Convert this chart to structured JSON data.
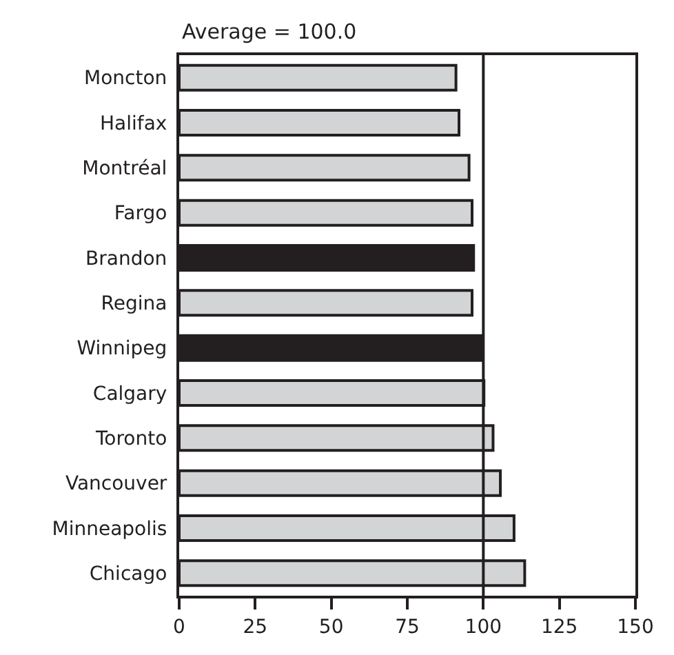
{
  "chart_data": {
    "type": "bar",
    "orientation": "horizontal",
    "categories": [
      "Moncton",
      "Halifax",
      "Montréal",
      "Fargo",
      "Brandon",
      "Regina",
      "Winnipeg",
      "Calgary",
      "Toronto",
      "Vancouver",
      "Minneapolis",
      "Chicago"
    ],
    "values": [
      91,
      92,
      95.3,
      96.3,
      96.8,
      96.3,
      99.8,
      100.2,
      103.2,
      105.6,
      110.1,
      113.6
    ],
    "colors": [
      "#d3d4d6",
      "#d3d4d6",
      "#d3d4d6",
      "#d3d4d6",
      "#231f20",
      "#d3d4d6",
      "#231f20",
      "#d3d4d6",
      "#d3d4d6",
      "#d3d4d6",
      "#d3d4d6",
      "#d3d4d6"
    ],
    "xlim": [
      0,
      150
    ],
    "xticks": [
      0,
      25,
      50,
      75,
      100,
      125,
      150
    ],
    "ref_lines": [
      {
        "axis": "x",
        "value": 100,
        "label": "Average = 100.0",
        "color": "#231f20"
      }
    ],
    "data_labels": false
  }
}
